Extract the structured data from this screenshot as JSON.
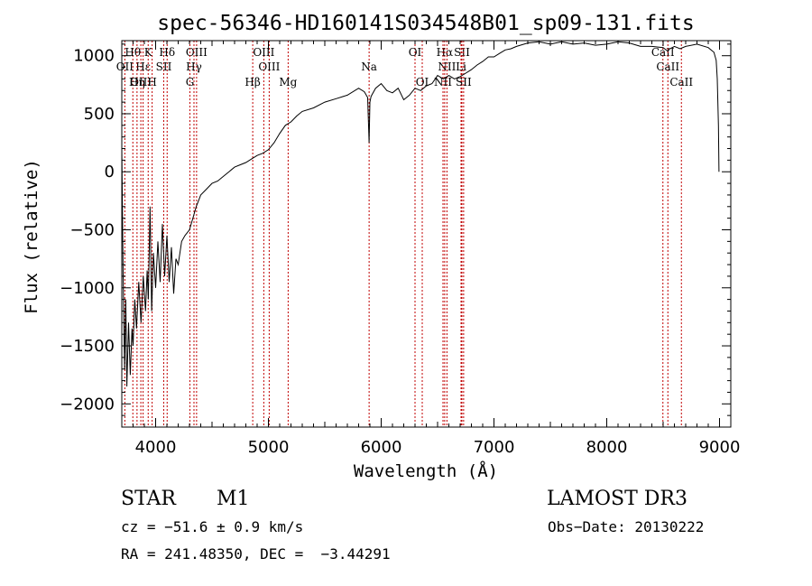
{
  "chart_data": {
    "type": "line",
    "title": "spec-56346-HD160141S034548B01_sp09-131.fits",
    "xlabel": "Wavelength (Å)",
    "ylabel": "Flux (relative)",
    "xlim": [
      3700,
      9100
    ],
    "ylim": [
      -2200,
      1130
    ],
    "xticks": [
      4000,
      5000,
      6000,
      7000,
      8000,
      9000
    ],
    "yticks": [
      -2000,
      -1500,
      -1000,
      -500,
      0,
      500,
      1000
    ],
    "series": [
      {
        "name": "spectrum",
        "x": [
          3700,
          3712,
          3725,
          3735,
          3745,
          3760,
          3775,
          3790,
          3800,
          3815,
          3830,
          3850,
          3870,
          3890,
          3910,
          3925,
          3935,
          3950,
          3965,
          3980,
          4000,
          4020,
          4040,
          4060,
          4080,
          4100,
          4120,
          4140,
          4160,
          4180,
          4200,
          4230,
          4260,
          4300,
          4330,
          4360,
          4380,
          4400,
          4450,
          4500,
          4550,
          4600,
          4650,
          4700,
          4750,
          4800,
          4850,
          4900,
          4950,
          5000,
          5050,
          5100,
          5150,
          5200,
          5250,
          5300,
          5400,
          5500,
          5600,
          5700,
          5800,
          5850,
          5880,
          5893,
          5900,
          5910,
          5950,
          6000,
          6050,
          6100,
          6150,
          6200,
          6250,
          6300,
          6350,
          6400,
          6450,
          6500,
          6550,
          6600,
          6650,
          6700,
          6750,
          6800,
          6850,
          6900,
          6950,
          7000,
          7050,
          7100,
          7150,
          7200,
          7300,
          7400,
          7500,
          7600,
          7700,
          7800,
          7900,
          8000,
          8100,
          8200,
          8300,
          8400,
          8500,
          8540,
          8560,
          8600,
          8650,
          8700,
          8800,
          8900,
          8950,
          8970,
          8980,
          8990,
          8995
        ],
        "values": [
          200,
          -900,
          -1700,
          -1100,
          -1850,
          -1300,
          -1750,
          -1350,
          -1500,
          -1100,
          -1350,
          -950,
          -1300,
          -900,
          -1200,
          -850,
          -1100,
          -300,
          -1200,
          -700,
          -1000,
          -600,
          -950,
          -450,
          -900,
          -550,
          -950,
          -650,
          -1050,
          -750,
          -800,
          -600,
          -550,
          -500,
          -400,
          -300,
          -250,
          -200,
          -150,
          -100,
          -80,
          -40,
          0,
          40,
          60,
          80,
          110,
          140,
          160,
          190,
          250,
          330,
          400,
          430,
          480,
          520,
          550,
          600,
          630,
          660,
          720,
          690,
          640,
          250,
          600,
          650,
          720,
          760,
          700,
          680,
          720,
          620,
          660,
          720,
          700,
          740,
          760,
          830,
          800,
          830,
          800,
          820,
          850,
          880,
          920,
          950,
          990,
          990,
          1020,
          1050,
          1060,
          1080,
          1110,
          1120,
          1100,
          1120,
          1100,
          1110,
          1090,
          1100,
          1120,
          1110,
          1080,
          1080,
          1070,
          1040,
          1060,
          1080,
          1060,
          1080,
          1100,
          1070,
          1030,
          960,
          800,
          400,
          0
        ]
      }
    ],
    "spectral_lines": [
      {
        "name": "Hθ",
        "wavelength": 3798,
        "row": 1
      },
      {
        "name": "OII",
        "wavelength": 3727,
        "row": 2
      },
      {
        "name": "OIII",
        "wavelength": 3869,
        "row": 3
      },
      {
        "name": "Hε",
        "wavelength": 3889,
        "row": 2
      },
      {
        "name": "K",
        "wavelength": 3934,
        "row": 1
      },
      {
        "name": "Hη",
        "wavelength": 3835,
        "row": 3
      },
      {
        "name": "H",
        "wavelength": 3969,
        "row": 3
      },
      {
        "name": "Hδ",
        "wavelength": 4102,
        "row": 1
      },
      {
        "name": "SII",
        "wavelength": 4072,
        "row": 2
      },
      {
        "name": "OIII",
        "wavelength": 4363,
        "row": 1
      },
      {
        "name": "Hγ",
        "wavelength": 4340,
        "row": 2
      },
      {
        "name": "G",
        "wavelength": 4304,
        "row": 3
      },
      {
        "name": "OIII",
        "wavelength": 4959,
        "row": 1
      },
      {
        "name": "OIII",
        "wavelength": 5007,
        "row": 2
      },
      {
        "name": "Hβ",
        "wavelength": 4861,
        "row": 3
      },
      {
        "name": "Mg",
        "wavelength": 5175,
        "row": 3
      },
      {
        "name": "Na",
        "wavelength": 5893,
        "row": 2
      },
      {
        "name": "OI",
        "wavelength": 6300,
        "row": 1
      },
      {
        "name": "OI",
        "wavelength": 6364,
        "row": 3
      },
      {
        "name": "Hα",
        "wavelength": 6563,
        "row": 1
      },
      {
        "name": "NII",
        "wavelength": 6583,
        "row": 2
      },
      {
        "name": "NII",
        "wavelength": 6548,
        "row": 3
      },
      {
        "name": "SII",
        "wavelength": 6716,
        "row": 1
      },
      {
        "name": "Li",
        "wavelength": 6708,
        "row": 2
      },
      {
        "name": "SII",
        "wavelength": 6731,
        "row": 3
      },
      {
        "name": "CaII",
        "wavelength": 8498,
        "row": 1
      },
      {
        "name": "CaII",
        "wavelength": 8542,
        "row": 2
      },
      {
        "name": "CaII",
        "wavelength": 8662,
        "row": 3
      }
    ]
  },
  "info": {
    "object_class": "STAR",
    "subclass": "M1",
    "cz": "cz = −51.6 ± 0.9 km/s",
    "radec": "RA = 241.48350, DEC =  −3.44291",
    "survey": "LAMOST DR3",
    "obs_date": "Obs−Date: 20130222"
  },
  "colors": {
    "spectrum": "#000000",
    "line_markers": "#c00000"
  }
}
